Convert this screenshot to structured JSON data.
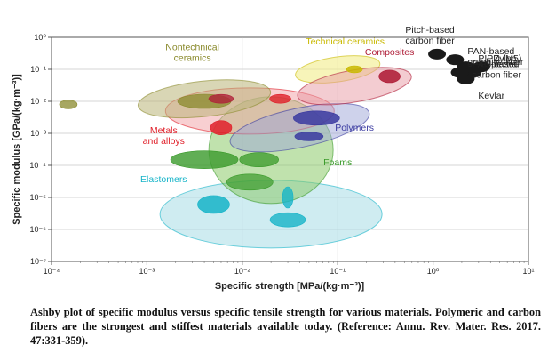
{
  "chart_data": {
    "type": "scatter",
    "subtype": "ashby-bubble",
    "xlabel": "Specific strength [MPa/(kg·m⁻³)]",
    "ylabel": "Specific modulus [GPa/(kg·m⁻³)]",
    "xscale": "log",
    "yscale": "log",
    "xlim": [
      0.0001,
      10
    ],
    "ylim": [
      1e-07,
      1
    ],
    "x_ticks": [
      "10⁻⁴",
      "10⁻³",
      "10⁻²",
      "10⁻¹",
      "10⁰",
      "10¹"
    ],
    "y_ticks": [
      "10⁰",
      "10⁻¹",
      "10⁻²",
      "10⁻³",
      "10⁻⁴",
      "10⁻⁵",
      "10⁻⁶",
      "10⁻⁷"
    ],
    "grid": true,
    "families": [
      {
        "name": "Nontechnical\nceramics",
        "color": "#8a8a2c",
        "fill": "#b9b478"
      },
      {
        "name": "Technical ceramics",
        "color": "#c9b900",
        "fill": "#f2ec8a"
      },
      {
        "name": "Composites",
        "color": "#b0203a",
        "fill": "#e89aa4"
      },
      {
        "name": "Polymers",
        "color": "#3a3aa0",
        "fill": "#9ea6d8"
      },
      {
        "name": "Metals\nand alloys",
        "color": "#e0202a",
        "fill": "#f2a0a4"
      },
      {
        "name": "Foams",
        "color": "#3a9a2a",
        "fill": "#8cca6a"
      },
      {
        "name": "Elastomers",
        "color": "#16b4c8",
        "fill": "#a8dde6"
      }
    ],
    "fibers": [
      {
        "name": "Pitch-based\ncarbon fiber",
        "x": 1.1,
        "y": 0.3
      },
      {
        "name": "PAN-based\ngraphitic fiber",
        "x": 1.7,
        "y": 0.2
      },
      {
        "name": "PIPD (M5)",
        "x": 2.2,
        "y": 0.12
      },
      {
        "name": "Zylon",
        "x": 3.2,
        "y": 0.12
      },
      {
        "name": "Spectra",
        "x": 2.6,
        "y": 0.08
      },
      {
        "name": "Kevlar",
        "x": 2.2,
        "y": 0.05
      },
      {
        "name": "PAN-based\ncarbon fiber",
        "x": 1.9,
        "y": 0.08
      }
    ]
  },
  "caption": "Ashby plot of specific modulus versus specific tensile strength for various materials. Polymeric and carbon fibers are the strongest and stiffest materials available today. (Reference: Annu. Rev. Mater. Res. 2017. 47:331-359)."
}
